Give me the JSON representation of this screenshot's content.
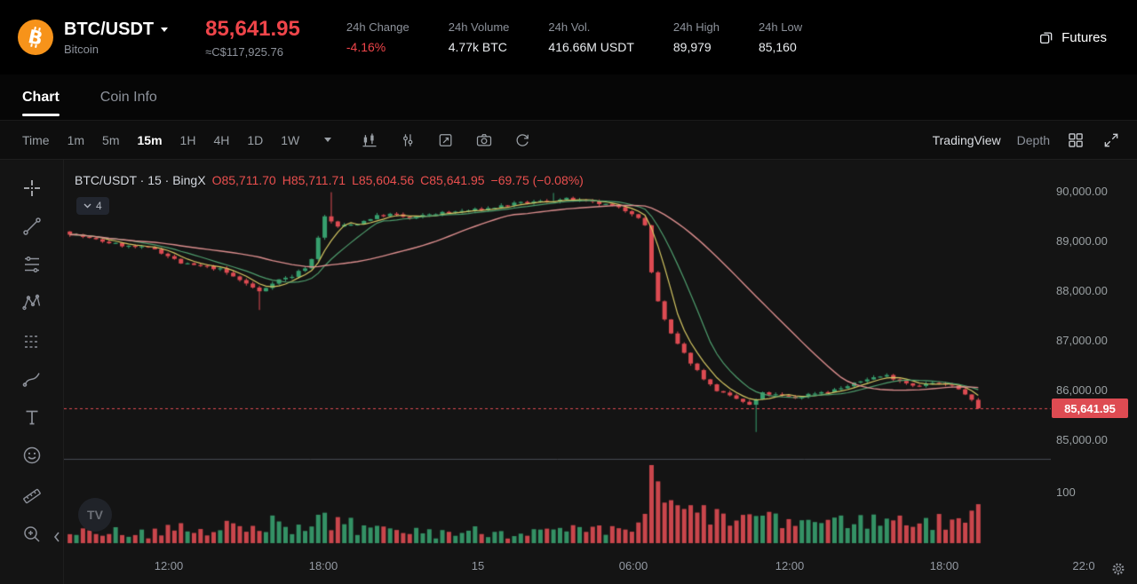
{
  "header": {
    "symbol": "BTC/USDT",
    "name": "Bitcoin",
    "price": "85,641.95",
    "fiat": "≈C$117,925.76",
    "stats": [
      {
        "label": "24h Change",
        "value": "-4.16%"
      },
      {
        "label": "24h Volume",
        "value": "4.77k BTC"
      },
      {
        "label": "24h Vol.",
        "value": "416.66M USDT"
      },
      {
        "label": "24h High",
        "value": "89,979"
      },
      {
        "label": "24h Low",
        "value": "85,160"
      }
    ],
    "futures_label": "Futures"
  },
  "tabs": [
    {
      "label": "Chart"
    },
    {
      "label": "Coin Info"
    }
  ],
  "toolbar": {
    "time_label": "Time",
    "timeframes": [
      "1m",
      "5m",
      "15m",
      "1H",
      "4H",
      "1D",
      "1W"
    ],
    "active_timeframe": "15m",
    "tradingview_label": "TradingView",
    "depth_label": "Depth"
  },
  "legend": {
    "title": "BTC/USDT · 15 · BingX",
    "o": "O85,711.70",
    "h": "H85,711.71",
    "l": "L85,604.56",
    "c": "C85,641.95",
    "change": "−69.75 (−0.08%)",
    "collapsed_count": "4"
  },
  "price_axis": {
    "labels": [
      "90,000.00",
      "89,000.00",
      "88,000.00",
      "87,000.00",
      "86,000.00",
      "85,000.00"
    ],
    "current": "85,641.95",
    "volume_label": "100"
  },
  "time_axis": [
    "12:00",
    "18:00",
    "15",
    "06:00",
    "12:00",
    "18:00",
    "22:0"
  ],
  "watermark_label": "TV",
  "icons": {
    "header": [
      "bitcoin-logo",
      "symbol-caret-icon",
      "futures-icon"
    ],
    "toolbar": [
      "indicators-icon",
      "indicator-settings-icon",
      "save-chart-icon",
      "camera-icon",
      "refresh-icon",
      "grid-layout-icon",
      "fullscreen-icon"
    ],
    "drawing_tools": [
      "crosshair-icon",
      "trend-line-icon",
      "fib-retracement-icon",
      "xabcd-pattern-icon",
      "bars-pattern-icon",
      "brush-icon",
      "text-icon",
      "emoji-icon",
      "measure-icon",
      "zoom-in-icon"
    ],
    "misc": [
      "collapse-toolbar-icon",
      "tradingview-watermark",
      "settings-gear-icon"
    ]
  },
  "colors": {
    "up": "#379f6e",
    "down": "#dd4b52",
    "price_red": "#ef454a",
    "tag_red": "#de4b52",
    "ma_fast": "#d6c863",
    "ma_mid": "#4f9e6e",
    "ma_slow": "#dc8e8e",
    "bitcoin_orange": "#f7931a"
  },
  "chart_data": {
    "type": "candlestick",
    "symbol": "BTC/USDT",
    "interval": "15m",
    "exchange": "BingX",
    "title": "BTC/USDT · 15 · BingX",
    "ohlc_display": {
      "open": 85711.7,
      "high": 85711.71,
      "low": 85604.56,
      "close": 85641.95,
      "change": -69.75,
      "change_pct": -0.08
    },
    "last_price": 85641.95,
    "day_high": 89979,
    "day_low": 85160,
    "y_axis": {
      "ticks": [
        90000,
        89000,
        88000,
        87000,
        86000,
        85000
      ],
      "grid": false
    },
    "x_axis_labels": [
      "12:00",
      "18:00",
      "15",
      "06:00",
      "12:00",
      "18:00",
      "22:0"
    ],
    "candle_count": 140,
    "price_path": [
      {
        "t": 0.0,
        "p": 89200
      },
      {
        "t": 0.03,
        "p": 89050
      },
      {
        "t": 0.07,
        "p": 88900
      },
      {
        "t": 0.1,
        "p": 88850
      },
      {
        "t": 0.13,
        "p": 88550
      },
      {
        "t": 0.17,
        "p": 88450
      },
      {
        "t": 0.2,
        "p": 88150
      },
      {
        "t": 0.215,
        "p": 87980
      },
      {
        "t": 0.23,
        "p": 88200
      },
      {
        "t": 0.25,
        "p": 88300
      },
      {
        "t": 0.27,
        "p": 88550
      },
      {
        "t": 0.285,
        "p": 89500
      },
      {
        "t": 0.3,
        "p": 89300
      },
      {
        "t": 0.32,
        "p": 89350
      },
      {
        "t": 0.34,
        "p": 89500
      },
      {
        "t": 0.36,
        "p": 89550
      },
      {
        "t": 0.38,
        "p": 89450
      },
      {
        "t": 0.4,
        "p": 89550
      },
      {
        "t": 0.43,
        "p": 89600
      },
      {
        "t": 0.46,
        "p": 89650
      },
      {
        "t": 0.49,
        "p": 89750
      },
      {
        "t": 0.52,
        "p": 89800
      },
      {
        "t": 0.55,
        "p": 89850
      },
      {
        "t": 0.57,
        "p": 89800
      },
      {
        "t": 0.59,
        "p": 89750
      },
      {
        "t": 0.61,
        "p": 89650
      },
      {
        "t": 0.625,
        "p": 89550
      },
      {
        "t": 0.635,
        "p": 89400
      },
      {
        "t": 0.645,
        "p": 88100
      },
      {
        "t": 0.655,
        "p": 87500
      },
      {
        "t": 0.665,
        "p": 87100
      },
      {
        "t": 0.68,
        "p": 86700
      },
      {
        "t": 0.695,
        "p": 86350
      },
      {
        "t": 0.71,
        "p": 86050
      },
      {
        "t": 0.725,
        "p": 85900
      },
      {
        "t": 0.74,
        "p": 85800
      },
      {
        "t": 0.75,
        "p": 85700
      },
      {
        "t": 0.765,
        "p": 85950
      },
      {
        "t": 0.78,
        "p": 85900
      },
      {
        "t": 0.8,
        "p": 85850
      },
      {
        "t": 0.82,
        "p": 85950
      },
      {
        "t": 0.84,
        "p": 86000
      },
      {
        "t": 0.86,
        "p": 86100
      },
      {
        "t": 0.88,
        "p": 86250
      },
      {
        "t": 0.9,
        "p": 86300
      },
      {
        "t": 0.915,
        "p": 86200
      },
      {
        "t": 0.93,
        "p": 86100
      },
      {
        "t": 0.95,
        "p": 86150
      },
      {
        "t": 0.97,
        "p": 86100
      },
      {
        "t": 0.985,
        "p": 85950
      },
      {
        "t": 1.0,
        "p": 85642
      }
    ],
    "special_wicks": [
      {
        "t": 0.21,
        "low": 87620
      },
      {
        "t": 0.288,
        "high": 89990
      },
      {
        "t": 0.53,
        "high": 89975
      },
      {
        "t": 0.747,
        "low": 85165
      }
    ],
    "volume": {
      "axis_label": "100",
      "max": 200
    },
    "ma": [
      {
        "period": 5,
        "color": "#d6c863"
      },
      {
        "period": 10,
        "color": "#4f9e6e"
      },
      {
        "period": 30,
        "color": "#dc8e8e"
      }
    ],
    "colors": {
      "up": "#379f6e",
      "down": "#dd4b52"
    }
  }
}
